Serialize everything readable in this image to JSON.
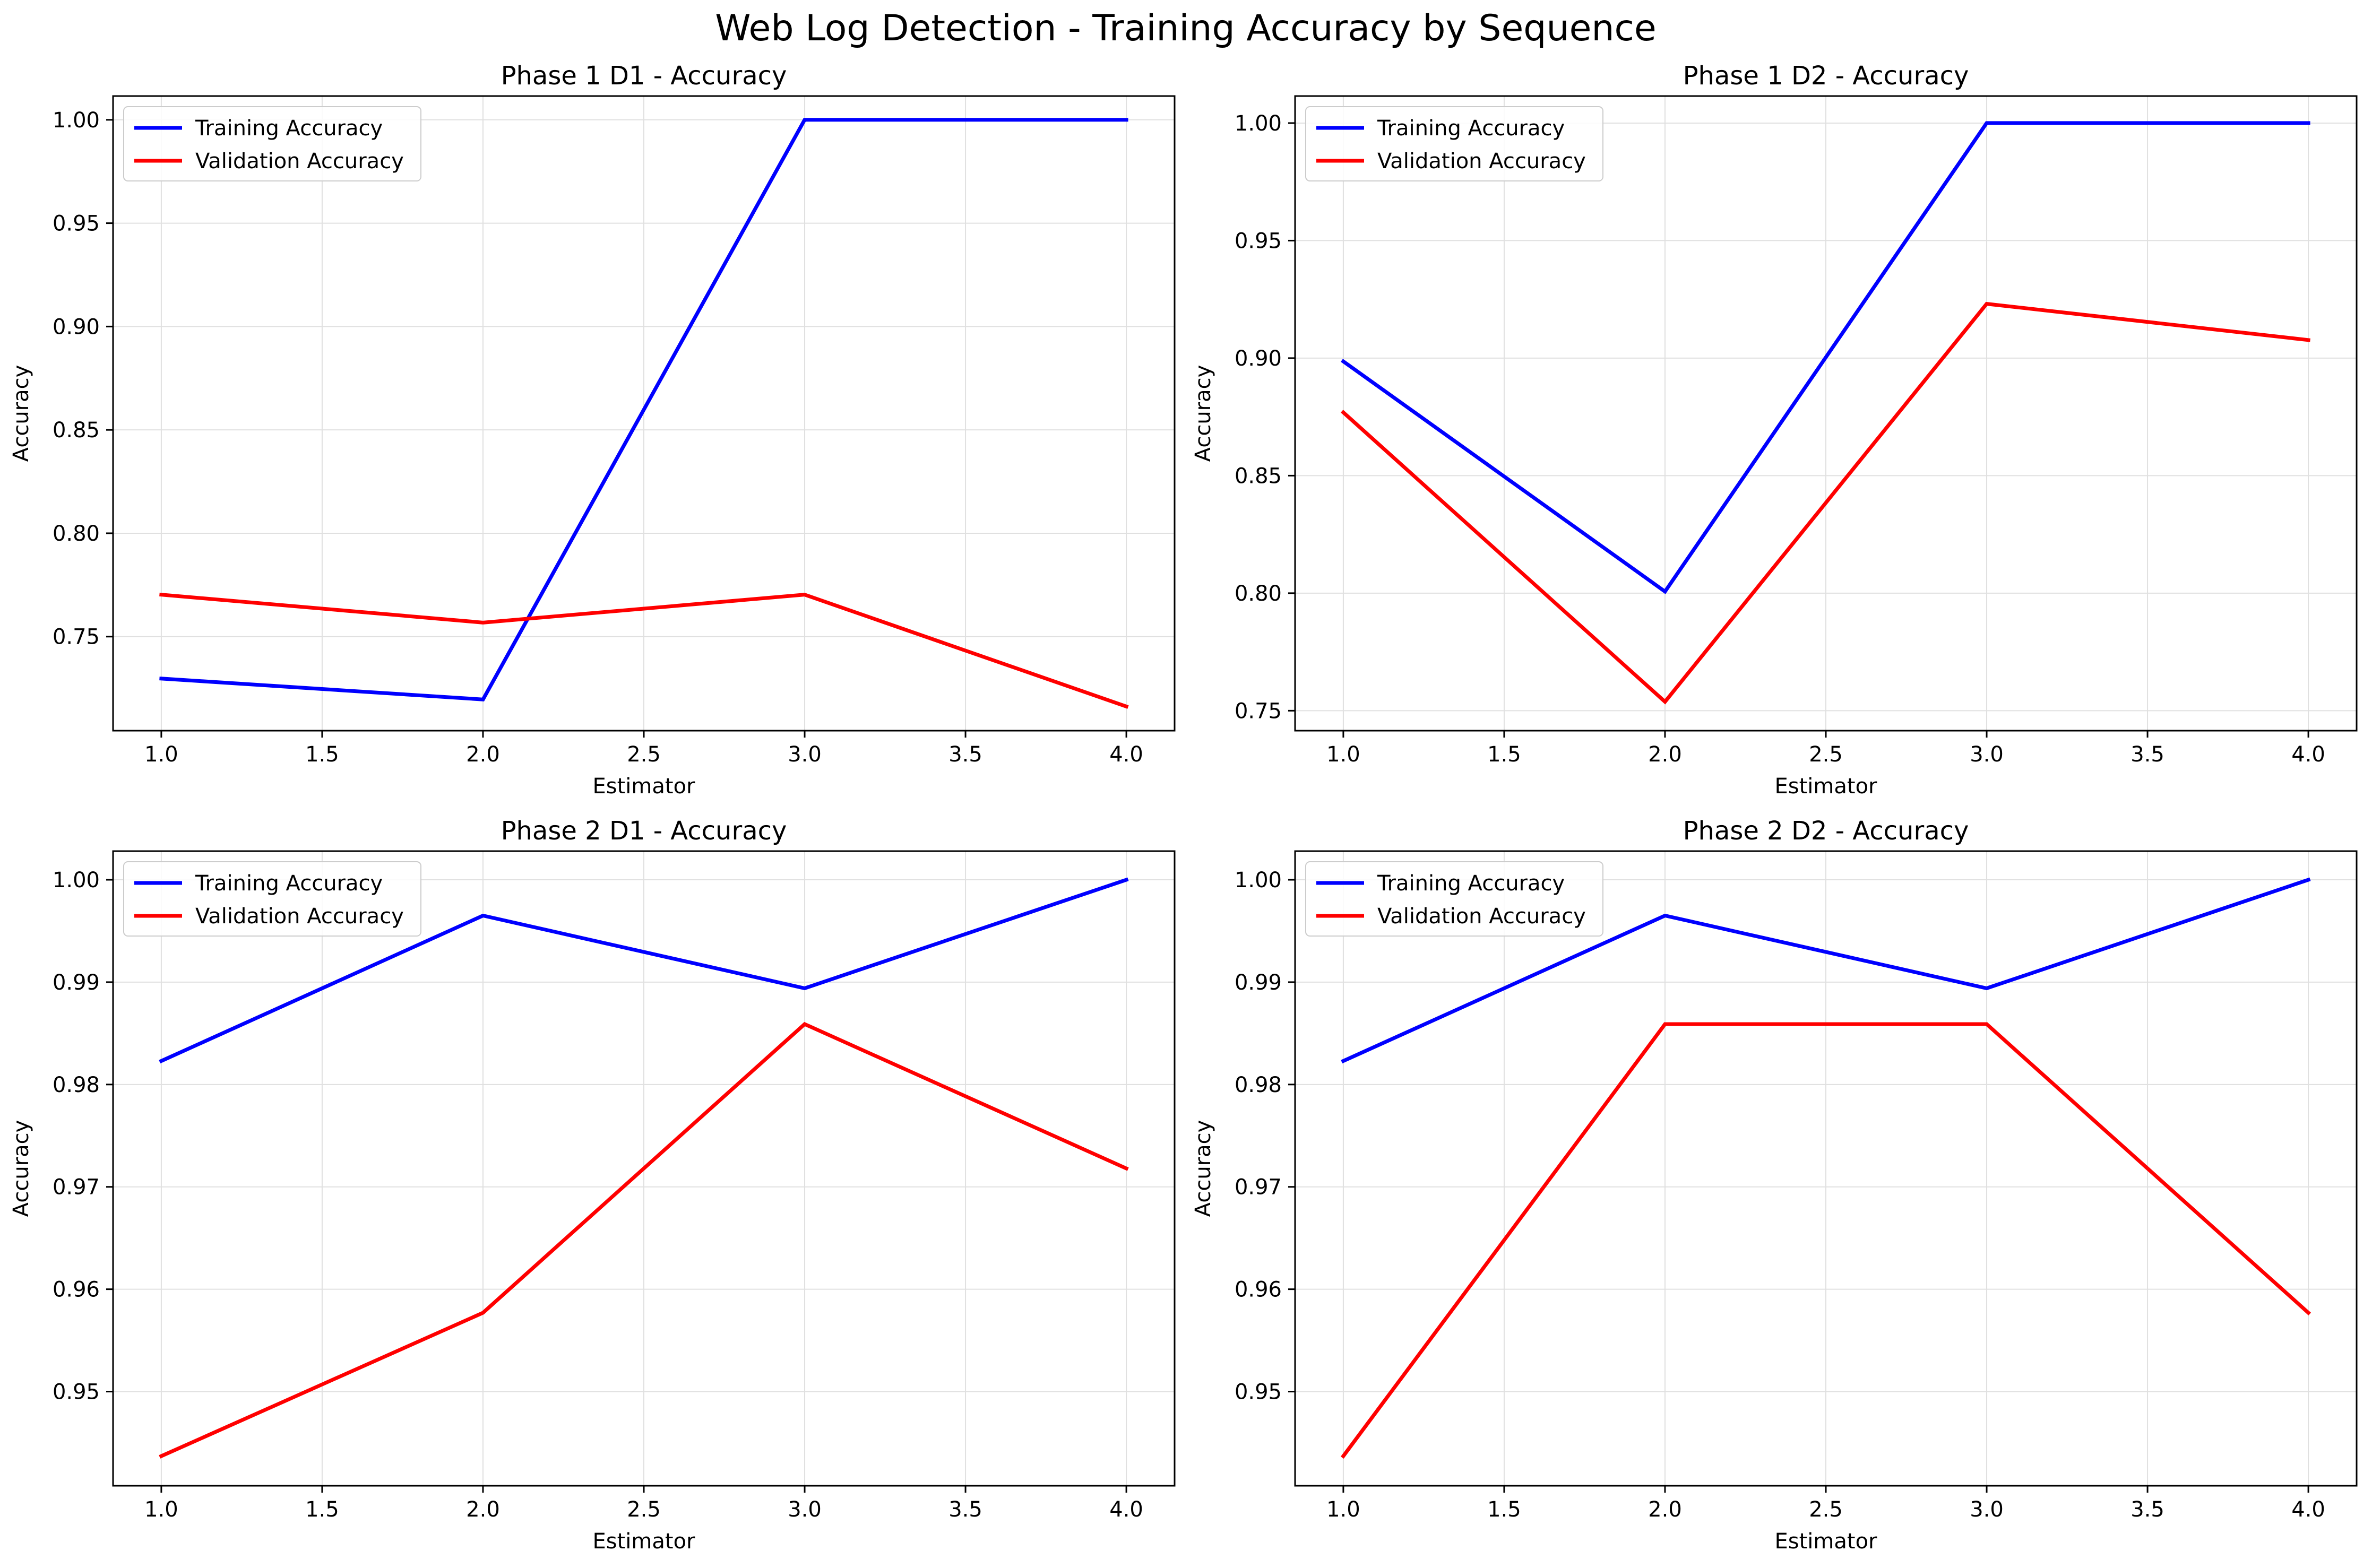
{
  "figure": {
    "suptitle": "Web Log Detection - Training Accuracy by Sequence"
  },
  "colors": {
    "training": "#0000ff",
    "validation": "#ff0000",
    "grid": "#e0e0e0",
    "axes": "#000000"
  },
  "chart_data": [
    {
      "type": "line",
      "title": "Phase 1 D1 - Accuracy",
      "xlabel": "Estimator",
      "ylabel": "Accuracy",
      "xlim": [
        0.85,
        4.15
      ],
      "ylim": [
        0.7045,
        1.0115
      ],
      "xticks": [
        1.0,
        1.5,
        2.0,
        2.5,
        3.0,
        3.5,
        4.0
      ],
      "xtick_labels": [
        "1.0",
        "1.5",
        "2.0",
        "2.5",
        "3.0",
        "3.5",
        "4.0"
      ],
      "yticks": [
        0.75,
        0.8,
        0.85,
        0.9,
        0.95,
        1.0
      ],
      "ytick_labels": [
        "0.75",
        "0.80",
        "0.85",
        "0.90",
        "0.95",
        "1.00"
      ],
      "grid": true,
      "legend_position": "upper-left",
      "x": [
        1,
        2,
        3,
        4
      ],
      "series": [
        {
          "name": "Training Accuracy",
          "values": [
            0.7297,
            0.7196,
            1.0,
            1.0
          ]
        },
        {
          "name": "Validation Accuracy",
          "values": [
            0.7703,
            0.7568,
            0.7703,
            0.7162
          ]
        }
      ]
    },
    {
      "type": "line",
      "title": "Phase 1 D2 - Accuracy",
      "xlabel": "Estimator",
      "ylabel": "Accuracy",
      "xlim": [
        0.85,
        4.15
      ],
      "ylim": [
        0.7415,
        1.0115
      ],
      "xticks": [
        1.0,
        1.5,
        2.0,
        2.5,
        3.0,
        3.5,
        4.0
      ],
      "xtick_labels": [
        "1.0",
        "1.5",
        "2.0",
        "2.5",
        "3.0",
        "3.5",
        "4.0"
      ],
      "yticks": [
        0.75,
        0.8,
        0.85,
        0.9,
        0.95,
        1.0
      ],
      "ytick_labels": [
        "0.75",
        "0.80",
        "0.85",
        "0.90",
        "0.95",
        "1.00"
      ],
      "grid": true,
      "legend_position": "upper-left",
      "x": [
        1,
        2,
        3,
        4
      ],
      "series": [
        {
          "name": "Training Accuracy",
          "values": [
            0.8986,
            0.8007,
            1.0,
            1.0
          ]
        },
        {
          "name": "Validation Accuracy",
          "values": [
            0.8769,
            0.7538,
            0.9231,
            0.9077
          ]
        }
      ]
    },
    {
      "type": "line",
      "title": "Phase 2 D1 - Accuracy",
      "xlabel": "Estimator",
      "ylabel": "Accuracy",
      "xlim": [
        0.85,
        4.15
      ],
      "ylim": [
        0.9408,
        1.0028
      ],
      "xticks": [
        1.0,
        1.5,
        2.0,
        2.5,
        3.0,
        3.5,
        4.0
      ],
      "xtick_labels": [
        "1.0",
        "1.5",
        "2.0",
        "2.5",
        "3.0",
        "3.5",
        "4.0"
      ],
      "yticks": [
        0.95,
        0.96,
        0.97,
        0.98,
        0.99,
        1.0
      ],
      "ytick_labels": [
        "0.95",
        "0.96",
        "0.97",
        "0.98",
        "0.99",
        "1.00"
      ],
      "grid": true,
      "legend_position": "upper-left",
      "x": [
        1,
        2,
        3,
        4
      ],
      "series": [
        {
          "name": "Training Accuracy",
          "values": [
            0.9823,
            0.9965,
            0.9894,
            1.0
          ]
        },
        {
          "name": "Validation Accuracy",
          "values": [
            0.9437,
            0.9577,
            0.9859,
            0.9718
          ]
        }
      ]
    },
    {
      "type": "line",
      "title": "Phase 2 D2 - Accuracy",
      "xlabel": "Estimator",
      "ylabel": "Accuracy",
      "xlim": [
        0.85,
        4.15
      ],
      "ylim": [
        0.9408,
        1.0028
      ],
      "xticks": [
        1.0,
        1.5,
        2.0,
        2.5,
        3.0,
        3.5,
        4.0
      ],
      "xtick_labels": [
        "1.0",
        "1.5",
        "2.0",
        "2.5",
        "3.0",
        "3.5",
        "4.0"
      ],
      "yticks": [
        0.95,
        0.96,
        0.97,
        0.98,
        0.99,
        1.0
      ],
      "ytick_labels": [
        "0.95",
        "0.96",
        "0.97",
        "0.98",
        "0.99",
        "1.00"
      ],
      "grid": true,
      "legend_position": "upper-left",
      "x": [
        1,
        2,
        3,
        4
      ],
      "series": [
        {
          "name": "Training Accuracy",
          "values": [
            0.9823,
            0.9965,
            0.9894,
            1.0
          ]
        },
        {
          "name": "Validation Accuracy",
          "values": [
            0.9437,
            0.9859,
            0.9859,
            0.9577
          ]
        }
      ]
    }
  ]
}
